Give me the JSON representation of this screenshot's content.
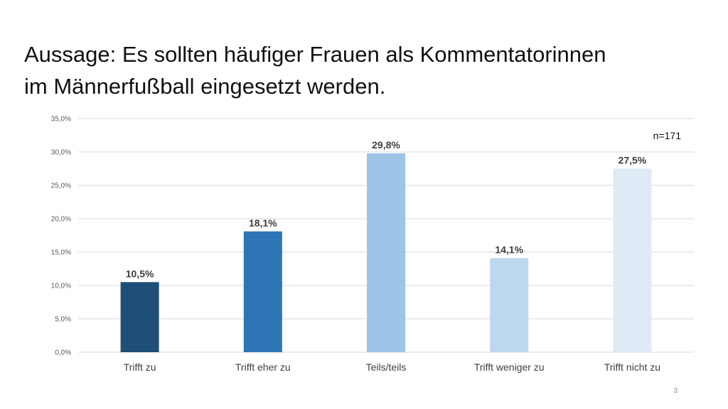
{
  "slide": {
    "title_line1": "Aussage: Es sollten häufiger Frauen als Kommentatorinnen",
    "title_line2": "im Männerfußball eingesetzt werden.",
    "page_number": "3"
  },
  "chart_data": {
    "type": "bar",
    "title": "",
    "xlabel": "",
    "ylabel": "",
    "annotation": "n=171",
    "categories": [
      "Trifft zu",
      "Trifft eher zu",
      "Teils/teils",
      "Trifft weniger zu",
      "Trifft nicht zu"
    ],
    "values": [
      10.5,
      18.1,
      29.8,
      14.1,
      27.5
    ],
    "value_labels": [
      "10,5%",
      "18,1%",
      "29,8%",
      "14,1%",
      "27,5%"
    ],
    "bar_colors": [
      "#1f4e79",
      "#2e75b6",
      "#9dc3e6",
      "#bdd7ee",
      "#deebf7"
    ],
    "ylim": [
      0,
      35
    ],
    "yticks": [
      0,
      5,
      10,
      15,
      20,
      25,
      30,
      35
    ],
    "ytick_labels": [
      "0,0%",
      "5,0%",
      "10,0%",
      "15,0%",
      "20,0%",
      "25,0%",
      "30,0%",
      "35,0%"
    ],
    "grid": true,
    "gridline_color": "#d9d9d9",
    "legend": "none"
  }
}
